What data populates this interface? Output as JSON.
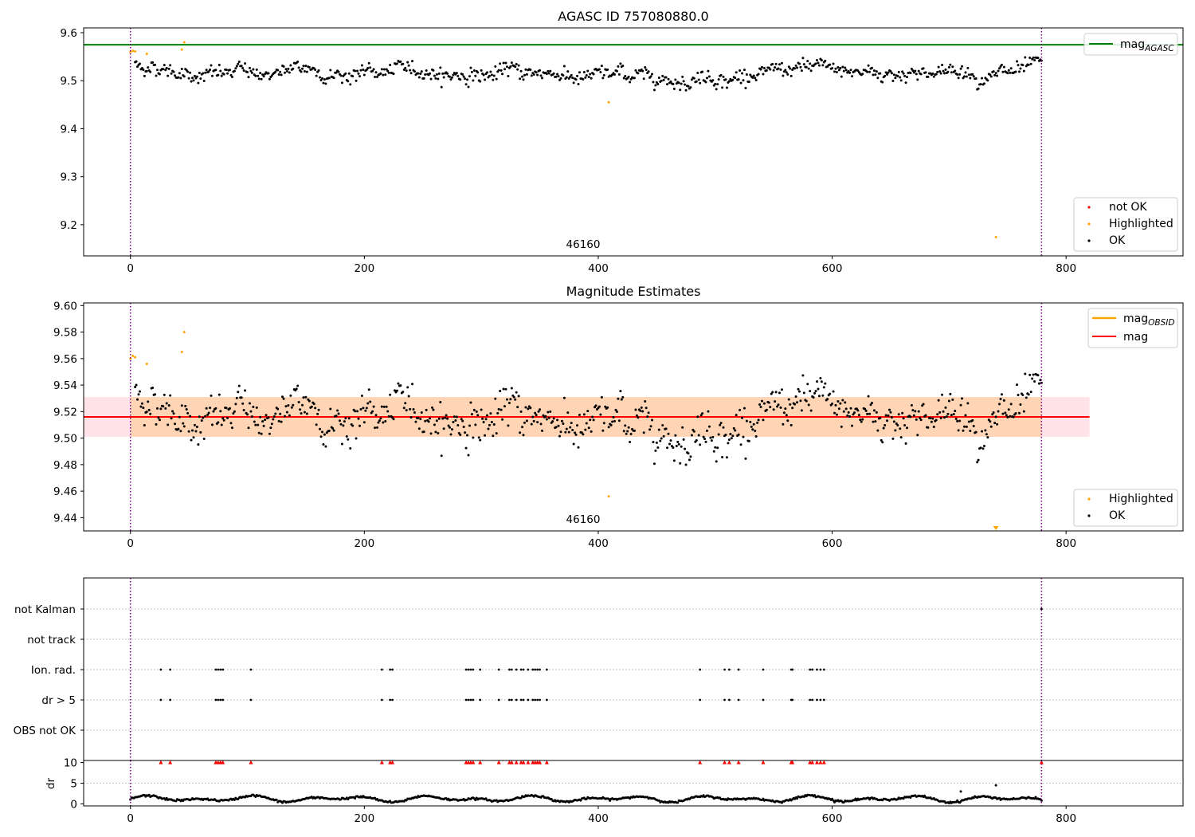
{
  "chart_data": [
    {
      "type": "scatter",
      "title": "AGASC ID 757080880.0",
      "xlabel": "",
      "ylabel": "",
      "xlim": [
        -40,
        900
      ],
      "ylim": [
        9.135,
        9.61
      ],
      "x_ticks": [
        "0",
        "200",
        "400",
        "600",
        "800"
      ],
      "y_ticks": [
        "9.2",
        "9.3",
        "9.4",
        "9.5",
        "9.6"
      ],
      "annotation": "46160",
      "vertical_lines_x": [
        0,
        779
      ],
      "reference_line": {
        "label": "mag",
        "label_sub": "AGASC",
        "value": 9.575,
        "color": "#008000"
      },
      "legend_top": [
        {
          "label": "mag",
          "label_sub": "AGASC",
          "color": "#008000"
        }
      ],
      "legend_bottom": [
        {
          "label": "not OK",
          "color": "#ff0000"
        },
        {
          "label": "Highlighted",
          "color": "#ffa500"
        },
        {
          "label": "OK",
          "color": "#000000"
        }
      ],
      "series": [
        {
          "name": "OK",
          "color": "#000000",
          "x_range": [
            4,
            779
          ],
          "count": 776,
          "mean": 9.516,
          "spread": 0.012
        },
        {
          "name": "Highlighted",
          "color": "#ffa500",
          "points": [
            [
              0,
              9.56
            ],
            [
              2,
              9.562
            ],
            [
              4,
              9.561
            ],
            [
              14,
              9.556
            ],
            [
              44,
              9.565
            ],
            [
              46,
              9.58
            ],
            [
              409,
              9.455
            ],
            [
              740,
              9.174
            ]
          ]
        }
      ]
    },
    {
      "type": "scatter",
      "title": "Magnitude Estimates",
      "xlabel": "",
      "ylabel": "",
      "xlim": [
        -40,
        900
      ],
      "ylim": [
        9.43,
        9.602
      ],
      "x_ticks": [
        "0",
        "200",
        "400",
        "600",
        "800"
      ],
      "y_ticks": [
        "9.44",
        "9.46",
        "9.48",
        "9.50",
        "9.52",
        "9.54",
        "9.56",
        "9.58",
        "9.60"
      ],
      "annotation": "46160",
      "vertical_lines_x": [
        0,
        779
      ],
      "mean_line": {
        "label": "mag",
        "value": 9.516,
        "color": "#ff0000"
      },
      "bands": [
        {
          "x_range": [
            -40,
            820
          ],
          "y_range": [
            9.501,
            9.531
          ],
          "color": "#ffc0cb"
        },
        {
          "x_range": [
            0,
            779
          ],
          "y_range": [
            9.501,
            9.531
          ],
          "color": "#ffa500"
        }
      ],
      "legend_top": [
        {
          "label": "mag",
          "label_sub": "OBSID",
          "color": "#ffa500"
        },
        {
          "label": "mag",
          "color": "#ff0000"
        }
      ],
      "legend_bottom": [
        {
          "label": "Highlighted",
          "color": "#ffa500"
        },
        {
          "label": "OK",
          "color": "#000000"
        }
      ],
      "series": [
        {
          "name": "OK",
          "color": "#000000",
          "x_range": [
            4,
            779
          ],
          "count": 776,
          "mean": 9.516,
          "spread": 0.012
        },
        {
          "name": "Highlighted",
          "color": "#ffa500",
          "points": [
            [
              0,
              9.56
            ],
            [
              2,
              9.562
            ],
            [
              4,
              9.561
            ],
            [
              14,
              9.556
            ],
            [
              44,
              9.565
            ],
            [
              46,
              9.58
            ],
            [
              409,
              9.456
            ]
          ]
        },
        {
          "name": "Highlighted (below range)",
          "color": "#ffa500",
          "marker": "triangle-down",
          "points": [
            [
              740,
              9.43
            ]
          ]
        }
      ]
    },
    {
      "type": "scatter",
      "title": "",
      "xlim": [
        -40,
        900
      ],
      "categories": [
        "not Kalman",
        "not track",
        "Ion. rad.",
        "dr > 5",
        "OBS not OK"
      ],
      "vertical_lines_x": [
        0,
        779
      ],
      "flags": {
        "not Kalman": [
          779
        ],
        "not track": [],
        "Ion. rad.": [
          26,
          34,
          73,
          75,
          77,
          79,
          103,
          215,
          222,
          224,
          287,
          289,
          291,
          293,
          299,
          315,
          324,
          326,
          330,
          334,
          336,
          340,
          344,
          346,
          348,
          350,
          356,
          487,
          508,
          512,
          520,
          541,
          565,
          566,
          581,
          583,
          587,
          590,
          593
        ],
        "dr > 5": [
          26,
          34,
          73,
          75,
          77,
          79,
          103,
          215,
          222,
          224,
          287,
          289,
          291,
          293,
          299,
          315,
          324,
          326,
          330,
          334,
          336,
          340,
          344,
          346,
          348,
          350,
          356,
          487,
          508,
          512,
          520,
          541,
          565,
          566,
          581,
          583,
          587,
          590,
          593
        ],
        "OBS not OK": []
      }
    },
    {
      "type": "scatter",
      "title": "",
      "xlabel": "",
      "ylabel": "dr",
      "xlim": [
        -40,
        900
      ],
      "ylim": [
        -0.5,
        10.5
      ],
      "x_ticks": [
        "0",
        "200",
        "400",
        "600",
        "800"
      ],
      "y_ticks": [
        "0",
        "5",
        "10"
      ],
      "vertical_lines_x": [
        0,
        779
      ],
      "series": [
        {
          "name": "dr",
          "color": "#000000",
          "x_range": [
            0,
            779
          ],
          "count": 780,
          "mean": 1.2,
          "spread": 0.5
        },
        {
          "name": "dr > 10 (clipped)",
          "color": "#ff0000",
          "marker": "triangle-up",
          "points_x": [
            26,
            34,
            73,
            75,
            77,
            79,
            103,
            215,
            222,
            224,
            287,
            289,
            291,
            293,
            299,
            315,
            324,
            326,
            330,
            334,
            336,
            340,
            344,
            346,
            348,
            350,
            356,
            487,
            508,
            512,
            520,
            541,
            565,
            566,
            581,
            583,
            587,
            590,
            593,
            779
          ]
        },
        {
          "name": "outliers",
          "color": "#000000",
          "points": [
            [
              740,
              4.5
            ],
            [
              710,
              3
            ]
          ]
        }
      ]
    }
  ]
}
